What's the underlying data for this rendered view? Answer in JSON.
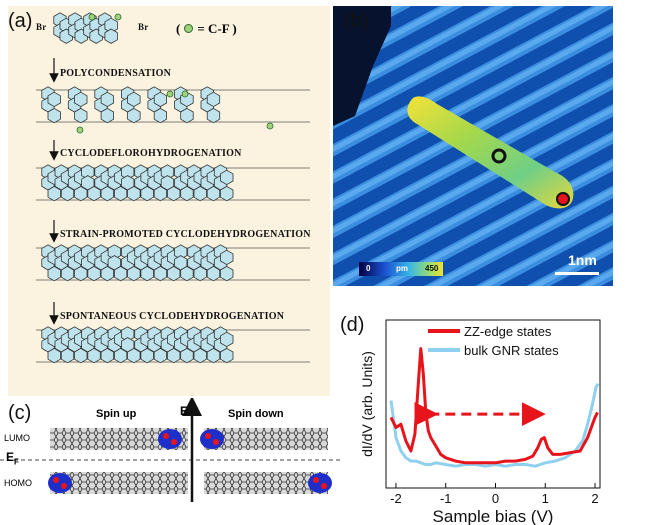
{
  "figure": {
    "panel_a": {
      "label": "(a)",
      "br_left": "Br",
      "br_right": "Br",
      "legend": "( = C-F )",
      "legend_text": "= C-F )",
      "legend_open": "(",
      "steps": [
        "POLYCONDENSATION",
        "CYCLODEFLOROHYDROGENATION",
        "STRAIN-PROMOTED CYCLODEHYDROGENATION",
        "SPONTANEOUS CYCLODEHYDROGENATION"
      ]
    },
    "panel_b": {
      "label": "(b)",
      "colorbar_min": "0",
      "colorbar_unit": "pm",
      "colorbar_max": "450",
      "scalebar": "1nm"
    },
    "panel_c": {
      "label": "(c)",
      "spin_up": "Spin up",
      "spin_down": "Spin down",
      "energy_axis": "E",
      "lumo": "LUMO",
      "fermi": "E",
      "fermi_sub": "F",
      "homo": "HOMO"
    },
    "panel_d": {
      "label": "(d)"
    }
  },
  "colors": {
    "zz_edge": "#e8141c",
    "bulk": "#8fd0f0",
    "panel_a_bg": "#fbf3df",
    "hex_fill": "#bfe3ec"
  },
  "chart_data": {
    "type": "line",
    "xlabel": "Sample bias (V)",
    "ylabel": "dI/dV (arb. Units)",
    "xlim": [
      -2.2,
      2.1
    ],
    "ylim": [
      0,
      1
    ],
    "x_ticks": [
      "-2",
      "-1",
      "0",
      "1",
      "2"
    ],
    "x_tick_values": [
      -2,
      -1,
      0,
      1,
      2
    ],
    "annotation": "double-headed arrow between edge-state peaks",
    "arrow_from": -1.45,
    "arrow_to": 0.95,
    "series": [
      {
        "name": "ZZ-edge states",
        "color": "#e8141c",
        "x": [
          -2.1,
          -2.0,
          -1.9,
          -1.8,
          -1.7,
          -1.62,
          -1.55,
          -1.5,
          -1.45,
          -1.4,
          -1.35,
          -1.3,
          -1.2,
          -1.1,
          -1.0,
          -0.8,
          -0.6,
          -0.4,
          -0.2,
          0.0,
          0.2,
          0.4,
          0.6,
          0.75,
          0.85,
          0.92,
          0.98,
          1.05,
          1.15,
          1.3,
          1.5,
          1.7,
          1.85,
          1.95,
          2.0,
          2.05
        ],
        "y": [
          0.42,
          0.36,
          0.38,
          0.28,
          0.22,
          0.32,
          0.62,
          0.83,
          0.68,
          0.45,
          0.34,
          0.3,
          0.25,
          0.2,
          0.18,
          0.16,
          0.15,
          0.15,
          0.15,
          0.15,
          0.16,
          0.16,
          0.17,
          0.19,
          0.24,
          0.29,
          0.3,
          0.24,
          0.2,
          0.2,
          0.21,
          0.22,
          0.3,
          0.38,
          0.42,
          0.45
        ]
      },
      {
        "name": "bulk GNR states",
        "color": "#8fd0f0",
        "x": [
          -2.1,
          -2.0,
          -1.9,
          -1.8,
          -1.7,
          -1.6,
          -1.5,
          -1.4,
          -1.3,
          -1.2,
          -1.0,
          -0.8,
          -0.6,
          -0.4,
          -0.2,
          0.0,
          0.2,
          0.4,
          0.6,
          0.8,
          1.0,
          1.2,
          1.4,
          1.6,
          1.75,
          1.85,
          1.95,
          2.02,
          2.06
        ],
        "y": [
          0.52,
          0.3,
          0.22,
          0.18,
          0.16,
          0.16,
          0.15,
          0.14,
          0.14,
          0.15,
          0.14,
          0.13,
          0.14,
          0.14,
          0.13,
          0.14,
          0.13,
          0.14,
          0.14,
          0.13,
          0.15,
          0.16,
          0.18,
          0.22,
          0.28,
          0.38,
          0.5,
          0.6,
          0.62
        ]
      }
    ]
  }
}
